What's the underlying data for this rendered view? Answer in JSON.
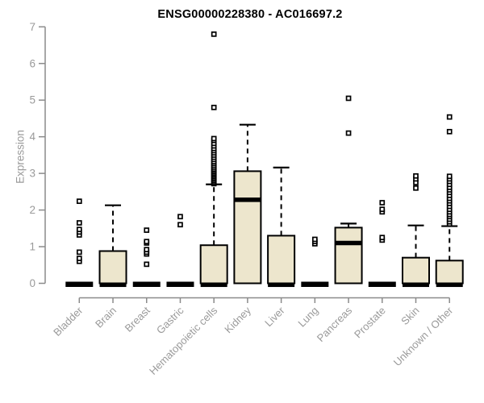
{
  "chart_data": {
    "type": "boxplot",
    "title": "ENSG00000228380 - AC016697.2",
    "ylabel": "Expression",
    "xlabel": "",
    "ylim": [
      0,
      7
    ],
    "yticks": [
      0,
      1,
      2,
      3,
      4,
      5,
      6,
      7
    ],
    "grid": "off",
    "box_fill": "#EDE6CD",
    "box_stroke": "#000000",
    "axis_color": "#8b8b8b",
    "tick_label_color": "#9a9a9a",
    "boxes": [
      {
        "label": "Bladder",
        "q1": 0,
        "median": 0,
        "q3": 0,
        "whisker_low": 0,
        "whisker_high": 0,
        "outliers": [
          0.6,
          0.68,
          0.85,
          1.32,
          1.4,
          1.47,
          1.65,
          2.24
        ]
      },
      {
        "label": "Brain",
        "q1": 0,
        "median": 0,
        "q3": 0.88,
        "whisker_low": 0,
        "whisker_high": 2.13,
        "outliers": []
      },
      {
        "label": "Breast",
        "q1": 0,
        "median": 0,
        "q3": 0,
        "whisker_low": 0,
        "whisker_high": 0,
        "outliers": [
          0.52,
          0.8,
          0.85,
          0.92,
          1.1,
          1.14,
          1.45
        ]
      },
      {
        "label": "Gastric",
        "q1": 0,
        "median": 0,
        "q3": 0,
        "whisker_low": 0,
        "whisker_high": 0,
        "outliers": [
          1.6,
          1.82
        ]
      },
      {
        "label": "Hematopoietic cells",
        "q1": 0,
        "median": 0,
        "q3": 1.04,
        "whisker_low": 0,
        "whisker_high": 2.7,
        "outliers": [
          2.72,
          2.76,
          2.8,
          2.84,
          2.88,
          2.92,
          2.96,
          3.0,
          3.04,
          3.08,
          3.12,
          3.17,
          3.22,
          3.27,
          3.32,
          3.38,
          3.44,
          3.5,
          3.56,
          3.62,
          3.68,
          3.75,
          3.82,
          3.9,
          3.95,
          4.8,
          6.8
        ]
      },
      {
        "label": "Kidney",
        "q1": 0,
        "median": 2.28,
        "q3": 3.06,
        "whisker_low": 0,
        "whisker_high": 4.33,
        "outliers": []
      },
      {
        "label": "Liver",
        "q1": 0,
        "median": 0,
        "q3": 1.3,
        "whisker_low": 0,
        "whisker_high": 3.16,
        "outliers": []
      },
      {
        "label": "Lung",
        "q1": 0,
        "median": 0,
        "q3": 0,
        "whisker_low": 0,
        "whisker_high": 0,
        "outliers": [
          1.08,
          1.14,
          1.2
        ]
      },
      {
        "label": "Pancreas",
        "q1": 0,
        "median": 1.1,
        "q3": 1.52,
        "whisker_low": 0,
        "whisker_high": 1.63,
        "outliers": [
          4.1,
          5.05
        ]
      },
      {
        "label": "Prostate",
        "q1": 0,
        "median": 0,
        "q3": 0,
        "whisker_low": 0,
        "whisker_high": 0,
        "outliers": [
          1.18,
          1.25,
          1.95,
          2.02,
          2.2
        ]
      },
      {
        "label": "Skin",
        "q1": 0,
        "median": 0,
        "q3": 0.7,
        "whisker_low": 0,
        "whisker_high": 1.58,
        "outliers": [
          2.6,
          2.75,
          2.85,
          2.93
        ]
      },
      {
        "label": "Unknown / Other",
        "q1": 0,
        "median": 0,
        "q3": 0.62,
        "whisker_low": 0,
        "whisker_high": 1.56,
        "outliers": [
          1.62,
          1.68,
          1.75,
          1.82,
          1.88,
          1.95,
          2.02,
          2.1,
          2.18,
          2.25,
          2.32,
          2.4,
          2.48,
          2.55,
          2.62,
          2.7,
          2.78,
          2.85,
          2.92,
          4.14,
          4.54
        ]
      }
    ]
  }
}
